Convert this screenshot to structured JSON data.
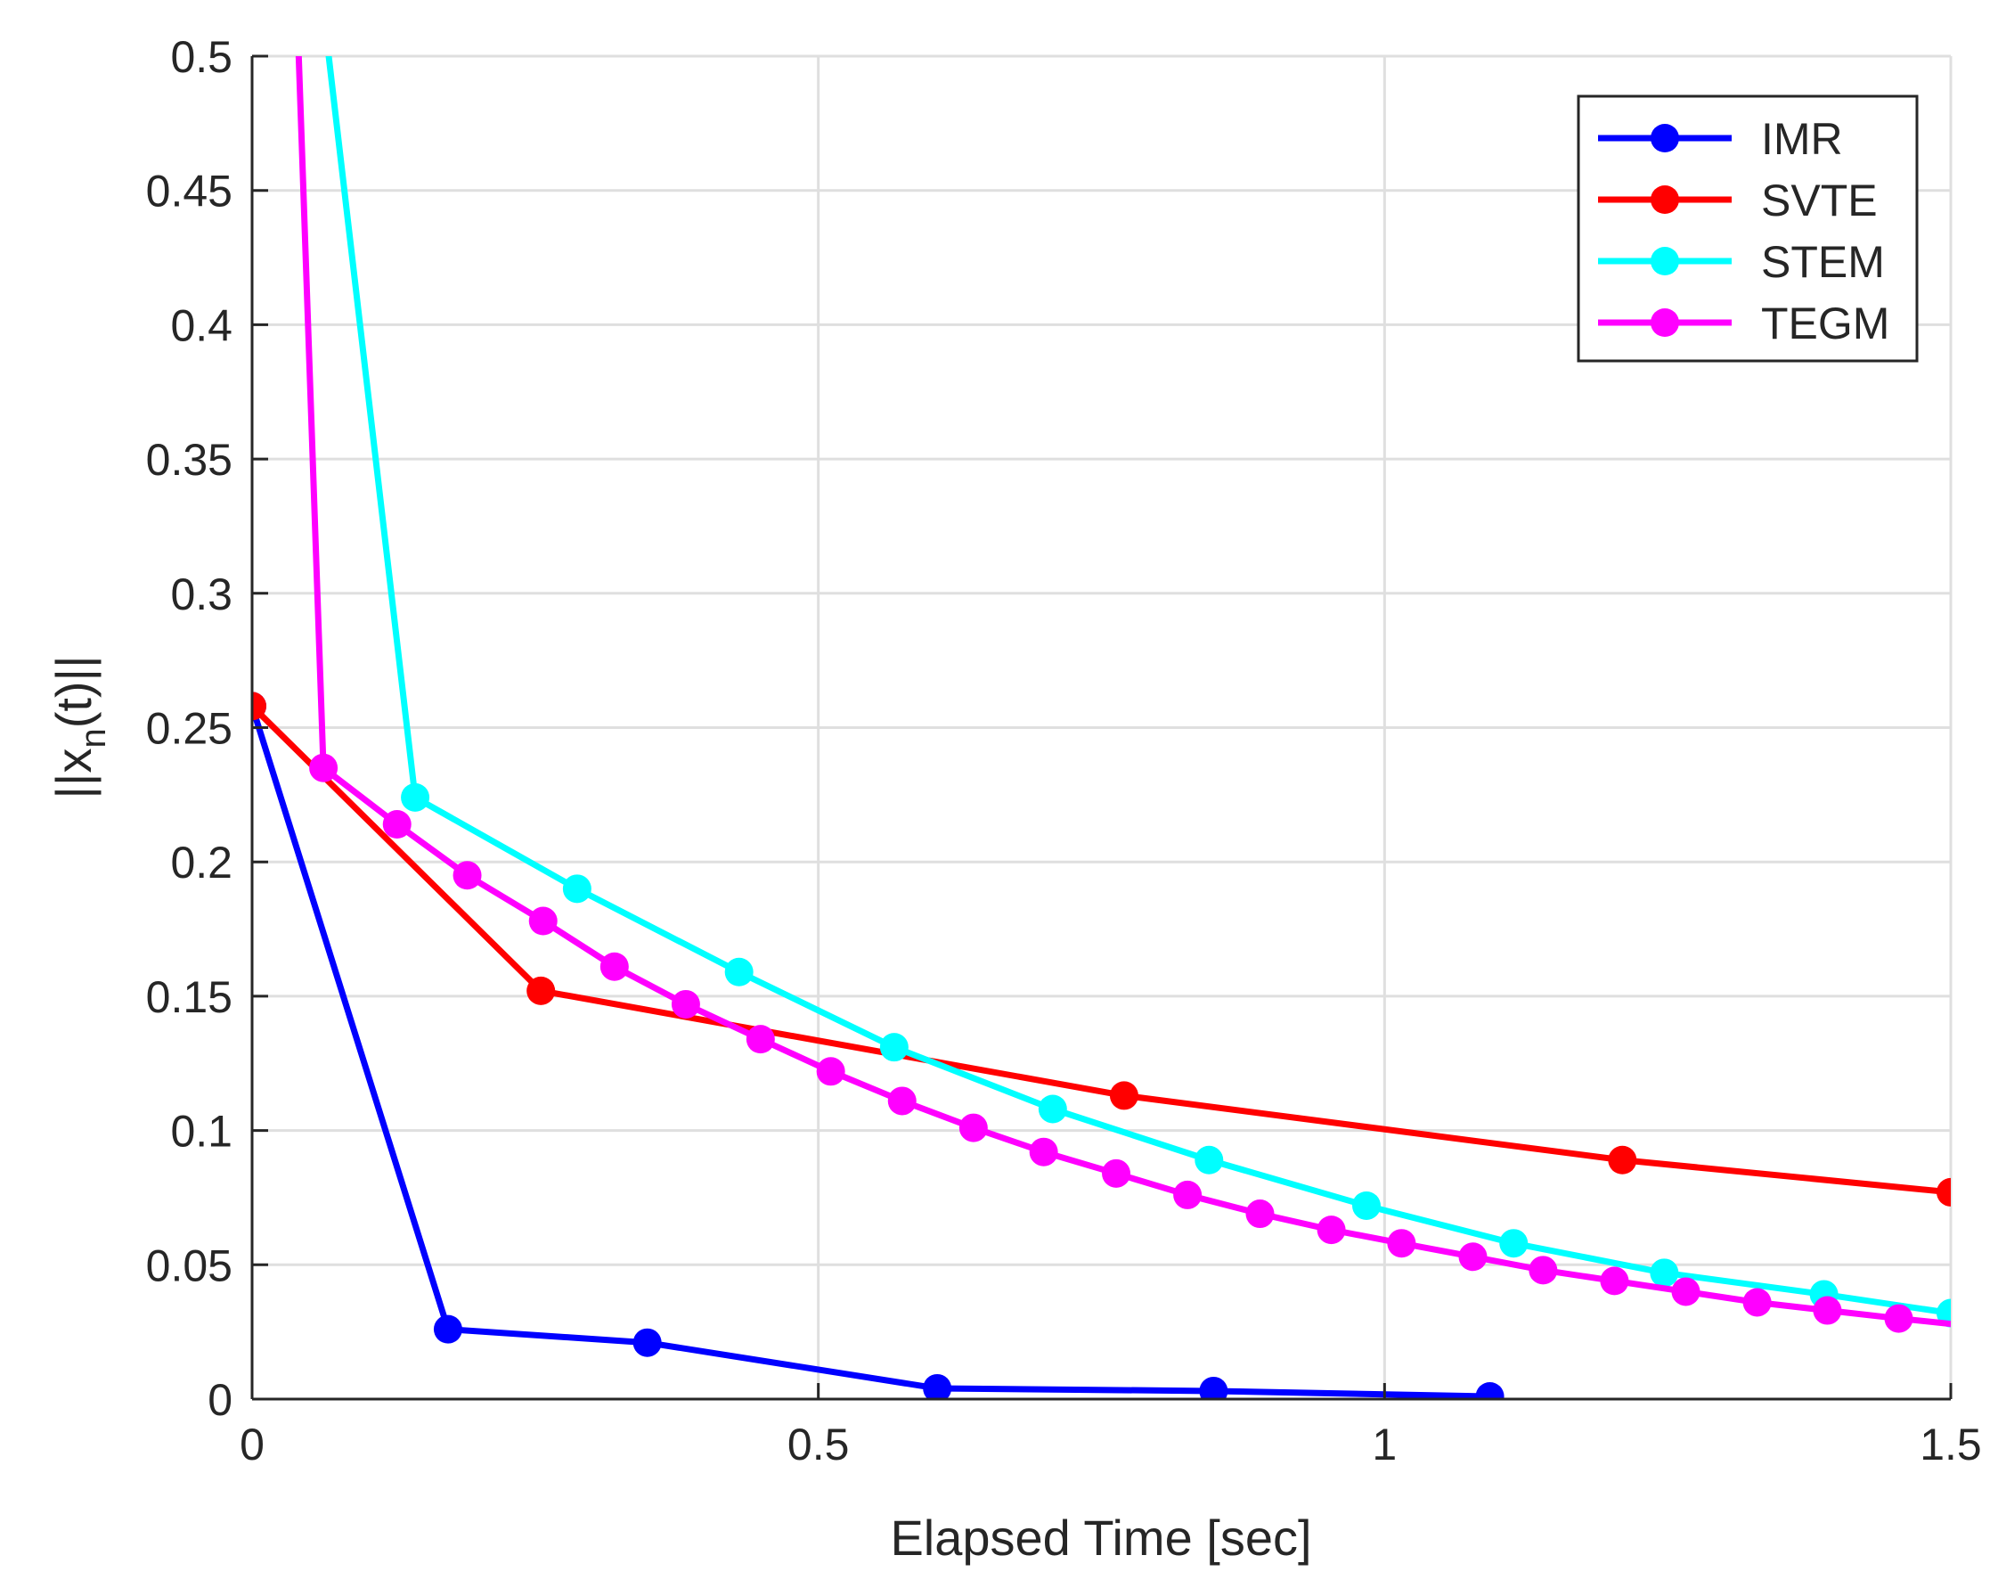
{
  "chart_data": {
    "type": "line",
    "title": "",
    "xlabel": "Elapsed Time [sec]",
    "ylabel": "||x_n(t)||",
    "ylabel_parts": {
      "pre": "||x",
      "sub": "n",
      "post": "(t)||"
    },
    "xlim": [
      0,
      1.5
    ],
    "ylim": [
      0,
      0.5
    ],
    "xticks": [
      0,
      0.5,
      1,
      1.5
    ],
    "xtick_labels": [
      "0",
      "0.5",
      "1",
      "1.5"
    ],
    "yticks": [
      0,
      0.05,
      0.1,
      0.15,
      0.2,
      0.25,
      0.3,
      0.35,
      0.4,
      0.45,
      0.5
    ],
    "ytick_labels": [
      "0",
      "0.05",
      "0.1",
      "0.15",
      "0.2",
      "0.25",
      "0.3",
      "0.35",
      "0.4",
      "0.45",
      "0.5"
    ],
    "grid": true,
    "legend_position": "top-right",
    "series": [
      {
        "name": "IMR",
        "color": "#0000ff",
        "x": [
          0.0,
          0.173,
          0.349,
          0.605,
          0.849,
          1.093
        ],
        "y": [
          0.258,
          0.026,
          0.021,
          0.004,
          0.003,
          0.001
        ]
      },
      {
        "name": "SVTE",
        "color": "#ff0000",
        "x": [
          0.0,
          0.255,
          0.77,
          1.21,
          1.5
        ],
        "y": [
          0.258,
          0.152,
          0.113,
          0.089,
          0.077
        ]
      },
      {
        "name": "STEM",
        "color": "#00ffff",
        "x": [
          0.04,
          0.144,
          0.287,
          0.43,
          0.567,
          0.707,
          0.845,
          0.984,
          1.114,
          1.247,
          1.388,
          1.5
        ],
        "y": [
          0.6,
          0.224,
          0.19,
          0.159,
          0.131,
          0.108,
          0.089,
          0.072,
          0.058,
          0.047,
          0.039,
          0.032
        ],
        "first_marker_index": 1
      },
      {
        "name": "TEGM",
        "color": "#ff00ff",
        "x": [
          0.0,
          0.063,
          0.128,
          0.19,
          0.257,
          0.32,
          0.383,
          0.449,
          0.511,
          0.574,
          0.637,
          0.699,
          0.763,
          0.826,
          0.89,
          0.953,
          1.015,
          1.078,
          1.14,
          1.203,
          1.266,
          1.329,
          1.391,
          1.454,
          1.5
        ],
        "y": [
          1.0,
          0.235,
          0.214,
          0.195,
          0.178,
          0.161,
          0.147,
          0.134,
          0.122,
          0.111,
          0.101,
          0.092,
          0.084,
          0.076,
          0.069,
          0.063,
          0.058,
          0.053,
          0.048,
          0.044,
          0.04,
          0.036,
          0.033,
          0.03,
          0.028
        ],
        "first_marker_index": 1,
        "last_marker_index": 23
      }
    ]
  }
}
